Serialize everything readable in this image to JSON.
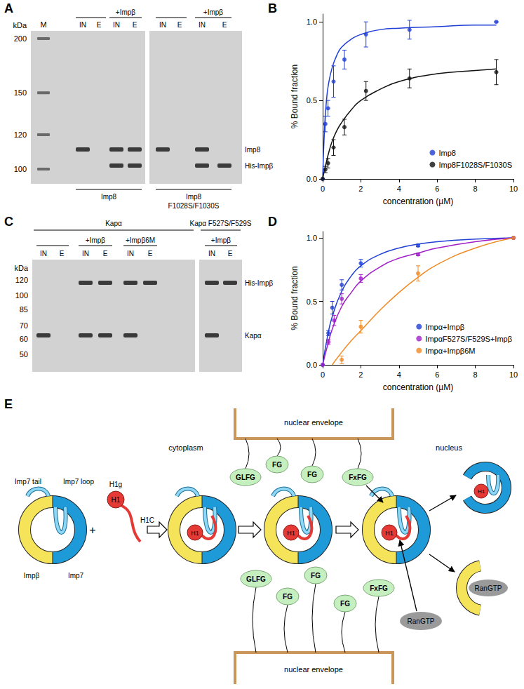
{
  "panel_labels": [
    "A",
    "B",
    "C",
    "D",
    "E"
  ],
  "gel_A": {
    "kda_label": "kDa",
    "markers": [
      200,
      150,
      120,
      100
    ],
    "marker_lane": "M",
    "proteins": [
      "Imp8",
      "His-Impβ"
    ],
    "gels": [
      {
        "lanes": [
          {
            "label": "IN",
            "bands": [
              "Imp8"
            ]
          },
          {
            "label": "E",
            "bands": []
          },
          {
            "label": "IN",
            "bands": [
              "Imp8",
              "His-Impβ"
            ]
          },
          {
            "label": "E",
            "bands": [
              "Imp8",
              "His-Impβ"
            ]
          }
        ],
        "top_lines": [
          {
            "lanes": [
              0,
              1
            ]
          },
          {
            "lanes": [
              2,
              3
            ],
            "label": "+Impβ"
          }
        ],
        "bottom_label": [
          "Imp8"
        ]
      },
      {
        "lanes": [
          {
            "label": "IN",
            "bands": [
              "Imp8"
            ]
          },
          {
            "label": "E",
            "bands": []
          },
          {
            "label": "IN",
            "bands": [
              "Imp8",
              "His-Impβ"
            ]
          },
          {
            "label": "E",
            "bands": [
              "His-Impβ"
            ]
          }
        ],
        "top_lines": [
          {
            "lanes": [
              0,
              1
            ]
          },
          {
            "lanes": [
              2,
              3
            ],
            "label": "+Impβ"
          }
        ],
        "bottom_label": [
          "Imp8",
          "F1028S/F1030S"
        ]
      }
    ]
  },
  "gel_C": {
    "kda_label": "kDa",
    "markers": [
      120,
      100,
      85,
      70,
      60,
      50
    ],
    "proteins": [
      "His-Impβ",
      "Kapα"
    ],
    "gels": [
      {
        "title": "Kapα",
        "lanes": [
          {
            "label": "IN",
            "bands": [
              "Kapα"
            ]
          },
          {
            "label": "E",
            "bands": []
          },
          {
            "label": "IN",
            "bands": [
              "His-Impβ",
              "Kapα"
            ]
          },
          {
            "label": "E",
            "bands": [
              "His-Impβ",
              "Kapα"
            ]
          },
          {
            "label": "IN",
            "bands": [
              "His-Impβ",
              "Kapα"
            ]
          },
          {
            "label": "E",
            "bands": [
              "His-Impβ"
            ]
          }
        ],
        "top_lines": [
          {
            "lanes": [
              0,
              1
            ]
          },
          {
            "lanes": [
              2,
              3
            ],
            "label": "+Impβ"
          },
          {
            "lanes": [
              4,
              5
            ],
            "label": "+Impβ6M"
          }
        ]
      },
      {
        "title": "Kapα F527S/F529S",
        "lanes": [
          {
            "label": "IN",
            "bands": [
              "His-Impβ",
              "Kapα"
            ]
          },
          {
            "label": "E",
            "bands": [
              "His-Impβ"
            ]
          }
        ],
        "top_lines": [
          {
            "lanes": [
              0,
              1
            ],
            "label": "+Impβ"
          }
        ]
      }
    ]
  },
  "chart_data": [
    {
      "type": "scatter",
      "x_label": "concentration (µM)",
      "y_label": "% Bound fraction",
      "xlim": [
        0,
        10
      ],
      "xticks": [
        0,
        2,
        4,
        6,
        8,
        10
      ],
      "ylim": [
        0,
        1.05
      ],
      "yticks": [
        {
          "value": 0,
          "label": "0.0"
        },
        {
          "value": 0.5,
          "label": "0.5"
        },
        {
          "value": 1,
          "label": "1.0"
        }
      ],
      "grid": false,
      "legend": "lower right",
      "series": [
        {
          "name": "Imp8",
          "color": "#1f3fd6",
          "x": [
            0,
            0.14,
            0.28,
            0.57,
            1.14,
            2.27,
            4.55,
            9.1
          ],
          "values": [
            0,
            0.35,
            0.45,
            0.62,
            0.76,
            0.92,
            0.95,
            1.0
          ],
          "errors": [
            0,
            0.05,
            0.05,
            0.1,
            0.06,
            0.08,
            0.06,
            0
          ],
          "fit_x": [
            0,
            0.1,
            0.2,
            0.3,
            0.5,
            0.75,
            1,
            1.5,
            2,
            3,
            4,
            6,
            8,
            9.1
          ],
          "fit_values": [
            0,
            0.33,
            0.5,
            0.6,
            0.71,
            0.79,
            0.84,
            0.89,
            0.92,
            0.95,
            0.96,
            0.97,
            0.98,
            0.98
          ]
        },
        {
          "name": "Imp8F1028S/F1030S",
          "color": "#111111",
          "x": [
            0,
            0.14,
            0.28,
            0.57,
            1.14,
            2.27,
            4.55,
            9.1
          ],
          "values": [
            0,
            0.06,
            0.1,
            0.2,
            0.33,
            0.56,
            0.64,
            0.68
          ],
          "errors": [
            0,
            0.02,
            0.03,
            0.05,
            0.05,
            0.06,
            0.06,
            0.08
          ],
          "fit_x": [
            0,
            0.1,
            0.2,
            0.3,
            0.5,
            0.75,
            1,
            1.5,
            2,
            3,
            4,
            6,
            8,
            9.1
          ],
          "fit_values": [
            0,
            0.06,
            0.11,
            0.16,
            0.24,
            0.31,
            0.36,
            0.44,
            0.5,
            0.57,
            0.62,
            0.67,
            0.69,
            0.7
          ]
        }
      ]
    },
    {
      "type": "scatter",
      "x_label": "concentration (µM)",
      "y_label": "% Bound fraction",
      "xlim": [
        0,
        10
      ],
      "xticks": [
        0,
        2,
        4,
        6,
        8,
        10
      ],
      "ylim": [
        0,
        1.05
      ],
      "yticks": [
        {
          "value": 0,
          "label": "0.0"
        },
        {
          "value": 0.5,
          "label": "0.5"
        },
        {
          "value": 1,
          "label": "1.0"
        }
      ],
      "grid": false,
      "legend": "lower right",
      "series": [
        {
          "name": "Impα+Impβ",
          "color": "#1f3fd6",
          "x": [
            0,
            0.3,
            0.5,
            1,
            2,
            5,
            10
          ],
          "values": [
            0,
            0.25,
            0.45,
            0.63,
            0.8,
            0.94,
            1.0
          ],
          "errors": [
            0,
            0.02,
            0.05,
            0.04,
            0.03,
            0.01,
            0
          ],
          "fit_x": [
            0,
            0.25,
            0.5,
            1,
            1.5,
            2,
            3,
            4,
            5,
            6,
            8,
            10
          ],
          "fit_values": [
            0,
            0.22,
            0.38,
            0.58,
            0.7,
            0.78,
            0.87,
            0.92,
            0.95,
            0.97,
            0.99,
            1.0
          ]
        },
        {
          "name": "ImpαF527S/F529S+Impβ",
          "color": "#a020c8",
          "x": [
            0,
            0.3,
            0.6,
            1,
            2,
            5,
            10
          ],
          "values": [
            0,
            0.18,
            0.35,
            0.52,
            0.68,
            0.87,
            1.0
          ],
          "errors": [
            0,
            0.02,
            0.04,
            0.04,
            0.03,
            0.01,
            0
          ],
          "fit_x": [
            0,
            0.25,
            0.5,
            1,
            1.5,
            2,
            3,
            4,
            5,
            6,
            8,
            10
          ],
          "fit_values": [
            0,
            0.15,
            0.28,
            0.46,
            0.57,
            0.66,
            0.77,
            0.84,
            0.88,
            0.92,
            0.97,
            1.0
          ]
        },
        {
          "name": "Impα+Impβ6M",
          "color": "#f08a24",
          "x": [
            1,
            2,
            5,
            10
          ],
          "values": [
            0.04,
            0.3,
            0.72,
            1.0
          ],
          "errors": [
            0.03,
            0.05,
            0.06,
            0
          ],
          "fit_x": [
            0,
            0.25,
            0.5,
            1,
            1.5,
            2,
            3,
            4,
            5,
            6,
            8,
            10
          ],
          "fit_values": [
            null,
            null,
            0,
            0.1,
            0.19,
            0.27,
            0.43,
            0.57,
            0.69,
            0.79,
            0.92,
            1.0
          ]
        }
      ]
    }
  ],
  "diagram_E": {
    "complex": {
      "imp7_tail": "Imp7 tail",
      "imp7_loop": "Imp7 loop",
      "impb": "Impβ",
      "imp7": "Imp7"
    },
    "plus": "+",
    "cargo": {
      "globular": "H1",
      "g_label": "H1g",
      "c_label": "H1C"
    },
    "cytoplasm": "cytoplasm",
    "nucleus": "nucleus",
    "envelope": "nuclear envelope",
    "fg_top": [
      "GLFG",
      "FG",
      "FG",
      "FxFG"
    ],
    "fg_bottom": [
      "GLFG",
      "FG",
      "FG",
      "FG",
      "FxFG"
    ],
    "ran": "RanGTP"
  }
}
